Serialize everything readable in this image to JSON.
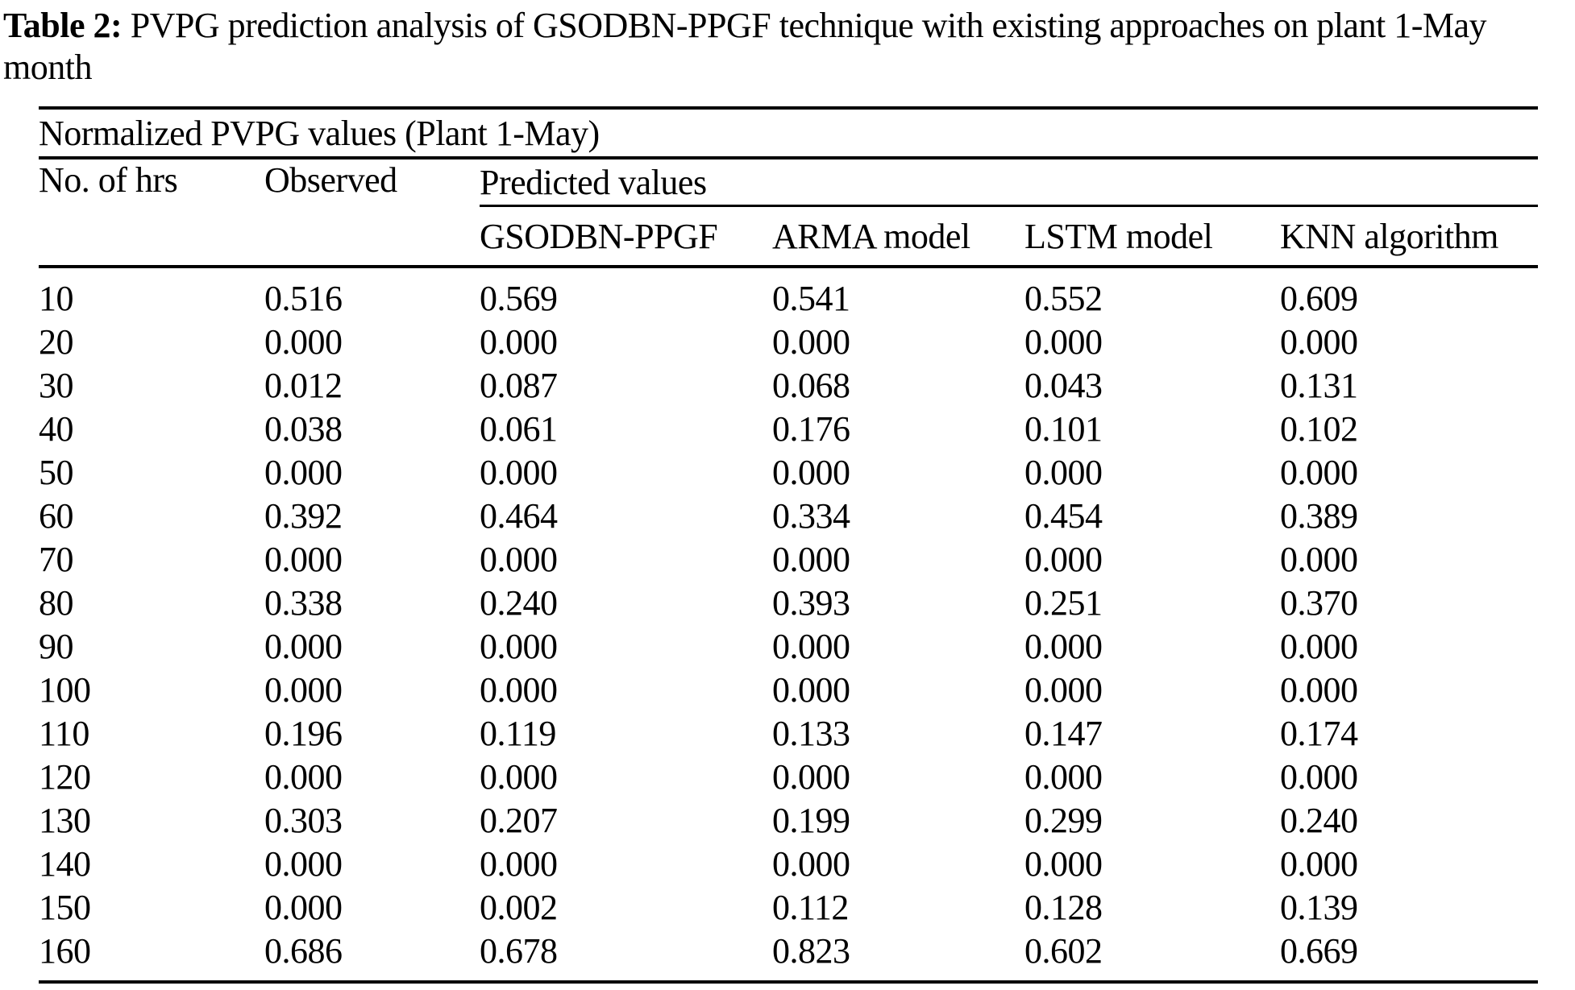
{
  "title": {
    "label": "Table 2:",
    "text": "PVPG prediction analysis of GSODBN-PPGF technique with existing approaches on plant 1-May month"
  },
  "table": {
    "span_header": "Normalized PVPG values (Plant 1-May)",
    "col_headers": {
      "hours": "No. of hrs",
      "observed": "Observed",
      "predicted_group": "Predicted values",
      "models": [
        "GSODBN-PPGF",
        "ARMA model",
        "LSTM model",
        "KNN algorithm"
      ]
    },
    "rows": [
      [
        "10",
        "0.516",
        "0.569",
        "0.541",
        "0.552",
        "0.609"
      ],
      [
        "20",
        "0.000",
        "0.000",
        "0.000",
        "0.000",
        "0.000"
      ],
      [
        "30",
        "0.012",
        "0.087",
        "0.068",
        "0.043",
        "0.131"
      ],
      [
        "40",
        "0.038",
        "0.061",
        "0.176",
        "0.101",
        "0.102"
      ],
      [
        "50",
        "0.000",
        "0.000",
        "0.000",
        "0.000",
        "0.000"
      ],
      [
        "60",
        "0.392",
        "0.464",
        "0.334",
        "0.454",
        "0.389"
      ],
      [
        "70",
        "0.000",
        "0.000",
        "0.000",
        "0.000",
        "0.000"
      ],
      [
        "80",
        "0.338",
        "0.240",
        "0.393",
        "0.251",
        "0.370"
      ],
      [
        "90",
        "0.000",
        "0.000",
        "0.000",
        "0.000",
        "0.000"
      ],
      [
        "100",
        "0.000",
        "0.000",
        "0.000",
        "0.000",
        "0.000"
      ],
      [
        "110",
        "0.196",
        "0.119",
        "0.133",
        "0.147",
        "0.174"
      ],
      [
        "120",
        "0.000",
        "0.000",
        "0.000",
        "0.000",
        "0.000"
      ],
      [
        "130",
        "0.303",
        "0.207",
        "0.199",
        "0.299",
        "0.240"
      ],
      [
        "140",
        "0.000",
        "0.000",
        "0.000",
        "0.000",
        "0.000"
      ],
      [
        "150",
        "0.000",
        "0.002",
        "0.112",
        "0.128",
        "0.139"
      ],
      [
        "160",
        "0.686",
        "0.678",
        "0.823",
        "0.602",
        "0.669"
      ]
    ]
  },
  "colors": {
    "text": "#000000",
    "background": "#ffffff",
    "rule": "#000000"
  }
}
